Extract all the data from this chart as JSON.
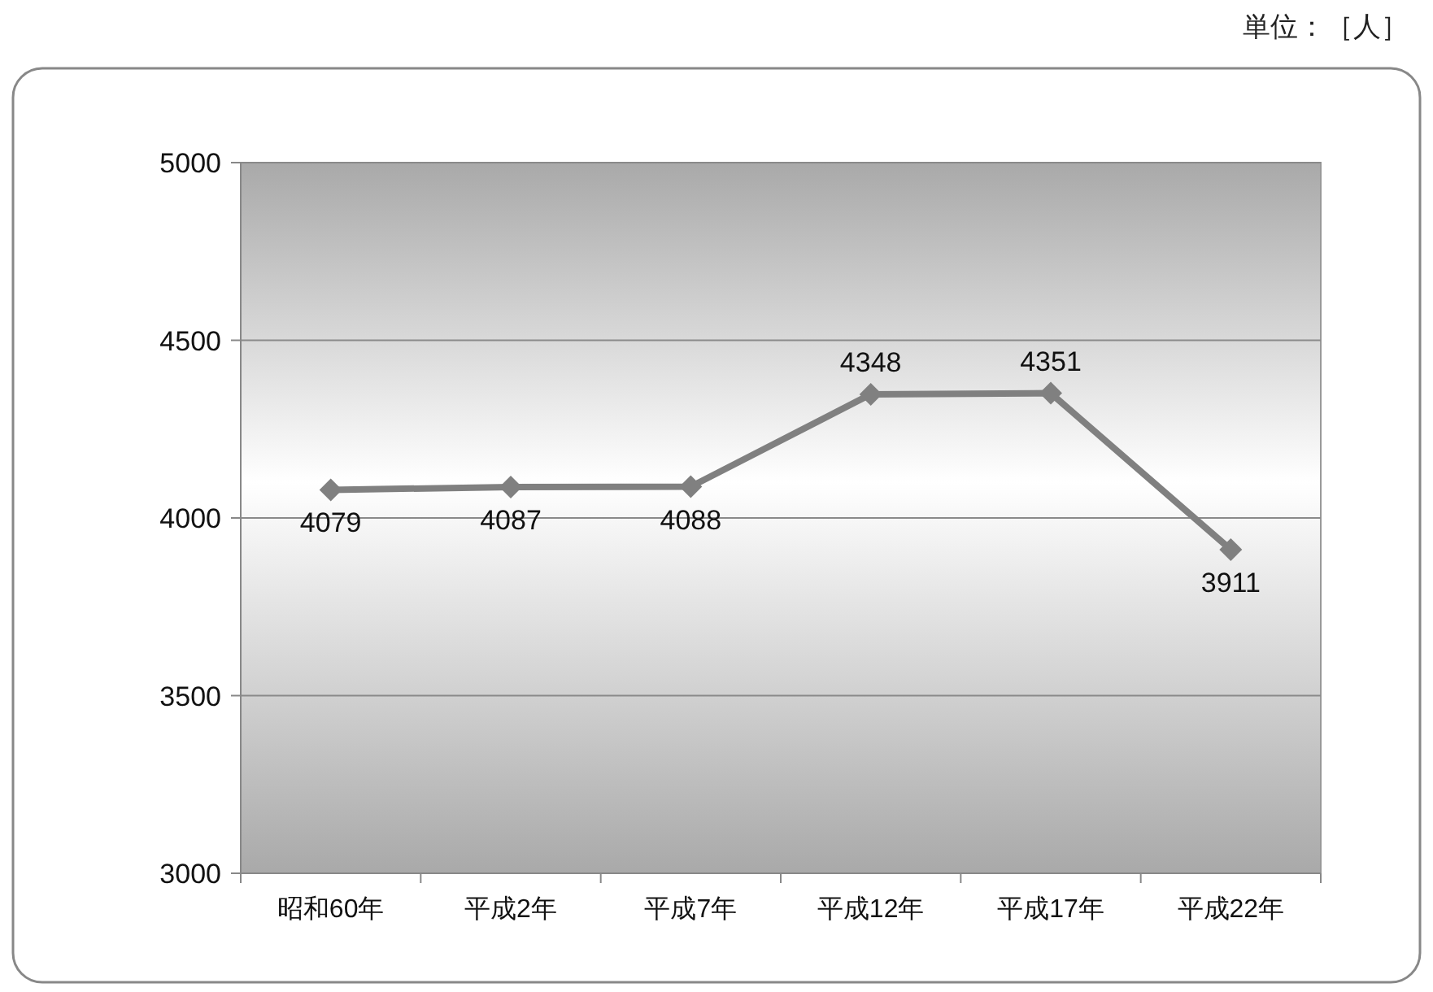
{
  "chart_data": {
    "type": "line",
    "categories": [
      "昭和60年",
      "平成2年",
      "平成7年",
      "平成12年",
      "平成17年",
      "平成22年"
    ],
    "series": [
      {
        "color": "#808080",
        "values": [
          4079,
          4087,
          4088,
          4348,
          4351,
          3911
        ]
      }
    ],
    "ylim": [
      3000,
      5000
    ],
    "yticks": [
      3000,
      3500,
      4000,
      4500,
      5000
    ],
    "grid": "y",
    "marker": "diamond",
    "line_style": "solid",
    "data_labels": true,
    "annotations": [
      "単位：［人］"
    ]
  }
}
